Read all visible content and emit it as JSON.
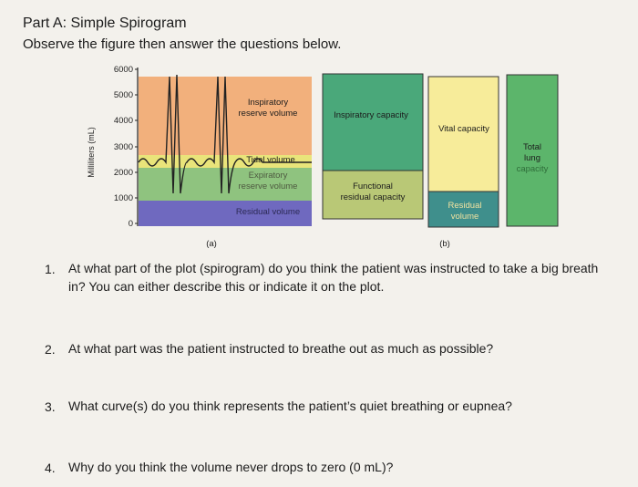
{
  "header": {
    "title": "Part A: Simple Spirogram",
    "subtitle": "Observe the figure then answer the questions below."
  },
  "figure": {
    "y_axis_label": "Milliliters (mL)",
    "y_ticks": [
      "6000",
      "5000",
      "4000",
      "3000",
      "2000",
      "1000",
      "0"
    ],
    "panel_a": {
      "label": "(a)",
      "zones": {
        "irv": [
          "Inspiratory",
          "reserve volume"
        ],
        "tv": "Tidal volume",
        "erv": [
          "Expiratory",
          "reserve volume"
        ],
        "rv": "Residual volume"
      }
    },
    "panel_b": {
      "label": "(b)",
      "ic": "Inspiratory capacity",
      "frc": [
        "Functional",
        "residual capacity"
      ],
      "vc": "Vital capacity",
      "rv": [
        "Residual",
        "volume"
      ],
      "tlc": [
        "Total",
        "lung",
        "capacity"
      ]
    },
    "colors": {
      "irv": "#f2b07c",
      "tv": "#e9e47a",
      "erv": "#8fc37f",
      "rv": "#6f69bf",
      "ic": "#4aa87a",
      "frc": "#b9c876",
      "vc": "#f7ec9a",
      "rv_bar": "#3f8f8c",
      "tlc": "#5cb56b"
    }
  },
  "questions": [
    {
      "number": "1.",
      "lines": [
        "At what part of the plot (spirogram) do you think the patient was instructed to take a big breath",
        "in? You can either describe this or indicate it on the plot."
      ]
    },
    {
      "number": "2.",
      "lines": [
        "At what part was the patient instructed to breathe out as much as possible?"
      ]
    },
    {
      "number": "3.",
      "lines": [
        "What curve(s) do you think represents the patient’s quiet breathing or eupnea?"
      ]
    },
    {
      "number": "4.",
      "lines": [
        "Why do you think the volume never drops to zero (0 mL)?"
      ]
    }
  ]
}
